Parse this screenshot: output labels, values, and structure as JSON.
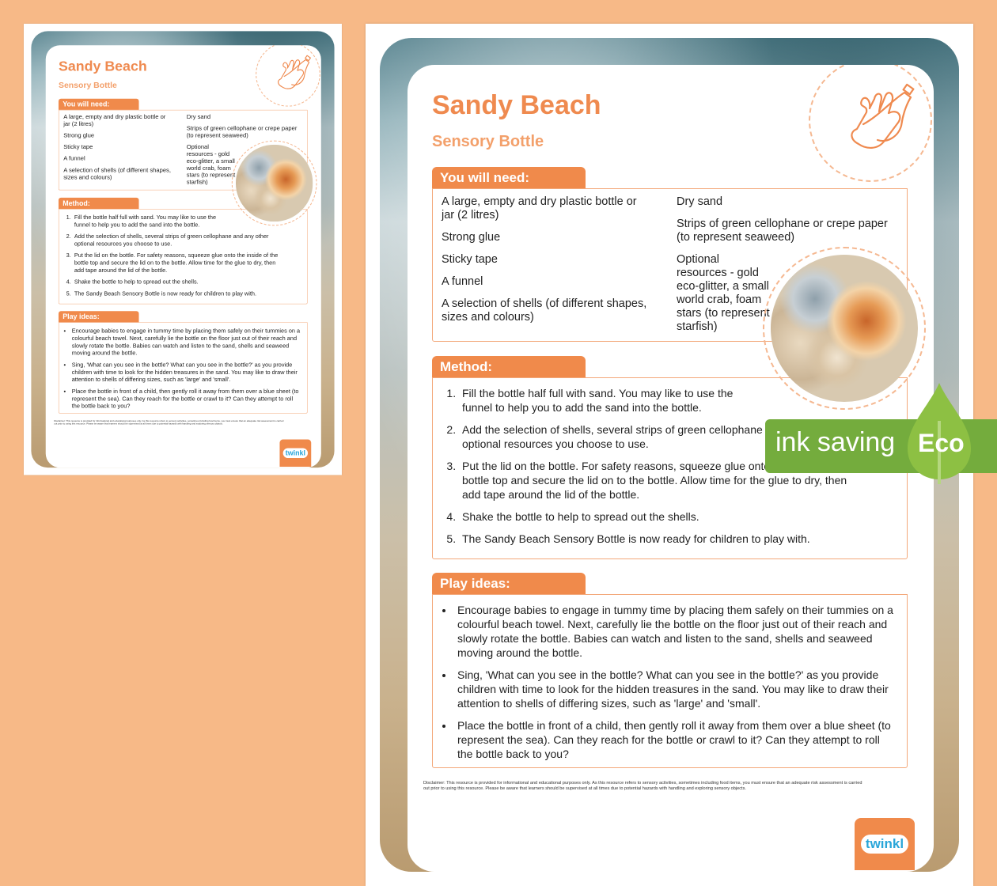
{
  "title": "Sandy Beach",
  "subtitle": "Sensory Bottle",
  "need": {
    "heading": "You will need:",
    "col1": [
      "A large, empty and dry plastic bottle or jar (2 litres)",
      "Strong glue",
      "Sticky tape",
      "A funnel",
      "A selection of shells (of different shapes, sizes and colours)"
    ],
    "col2": [
      "Dry sand",
      "Strips of green cellophane or crepe paper (to represent seaweed)",
      "Optional resources - gold eco-glitter, a small world crab, foam stars (to represent starfish)"
    ]
  },
  "method": {
    "heading": "Method:",
    "steps": [
      "Fill the bottle half full with sand. You may like to use the funnel to help you to add the sand into the bottle.",
      "Add the selection of shells, several strips of green cellophane and any other optional resources you choose to use.",
      "Put the lid on the bottle. For safety reasons, squeeze glue onto the inside of the bottle top and secure the lid on to the bottle. Allow time for the glue to dry, then add tape around the lid of the bottle.",
      "Shake the bottle to help to spread out the shells.",
      "The Sandy Beach Sensory Bottle is now ready for children to play with."
    ]
  },
  "play": {
    "heading": "Play ideas:",
    "items": [
      "Encourage babies to engage in tummy time by placing them safely on their tummies on a colourful beach towel. Next, carefully lie the bottle on the floor just out of their reach and slowly rotate the bottle. Babies can watch and listen to the sand, shells and seaweed moving around the bottle.",
      "Sing, 'What can you see in the bottle? What can you see in the bottle?' as you provide children with time to look for the hidden treasures in the sand. You may like to draw their attention to shells of differing sizes, such as 'large' and 'small'.",
      "Place the bottle in front of a child, then gently roll it away from them over a blue sheet (to represent the sea). Can they reach for the bottle or crawl to it? Can they attempt to roll the bottle back to you?"
    ]
  },
  "disclaimer": "Disclaimer: This resource is provided for informational and educational purposes only. As this resource refers to sensory activities, sometimes including food items, you must ensure that an adequate risk assessment is carried out prior to using this resource. Please be aware that learners should be supervised at all times due to potential hazards with handling and exploring sensory objects.",
  "logo": "twinkl",
  "badge": {
    "ink": "ink saving",
    "eco": "Eco"
  },
  "colors": {
    "accent": "#f08a4b",
    "eco_green": "#74ac3d",
    "background": "#f7b987"
  },
  "icons": [
    "hand-holding-bottle-icon",
    "eco-leaf-icon"
  ]
}
